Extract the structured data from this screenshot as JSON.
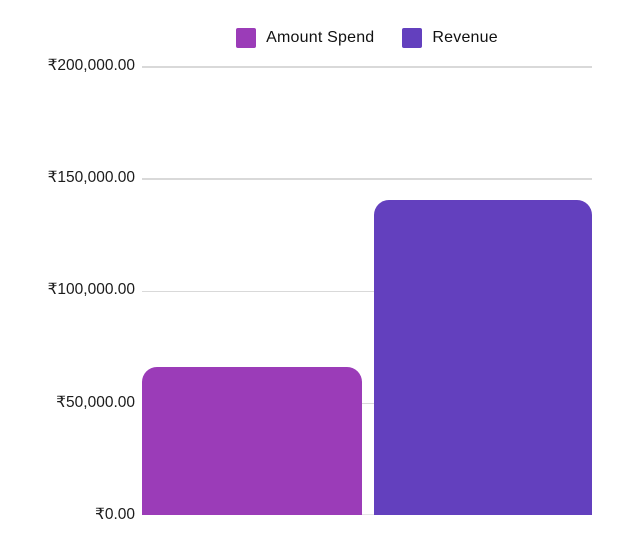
{
  "chart_data": {
    "type": "bar",
    "categories": [
      ""
    ],
    "series": [
      {
        "name": "Amount Spend",
        "color": "#9B3CB8",
        "values": [
          66000
        ]
      },
      {
        "name": "Revenue",
        "color": "#6340BE",
        "values": [
          140500
        ]
      }
    ],
    "title": "",
    "xlabel": "",
    "ylabel": "",
    "ylim": [
      0,
      200000
    ],
    "ytick_step": 50000,
    "ytick_labels": [
      "₹0.00",
      "₹50,000.00",
      "₹100,000.00",
      "₹150,000.00",
      "₹200,000.00"
    ],
    "currency_symbol": "₹",
    "grid": true,
    "legend_position": "top"
  },
  "legend": {
    "items": [
      {
        "label": "Amount Spend",
        "color": "#9B3CB8"
      },
      {
        "label": "Revenue",
        "color": "#6340BE"
      }
    ]
  },
  "colors": {
    "background": "#ffffff",
    "grid_line": "#d9d9d9",
    "axis_text": "#1b1b1b",
    "amount_spend_bar": "#9B3CB8",
    "revenue_bar": "#6340BE"
  }
}
